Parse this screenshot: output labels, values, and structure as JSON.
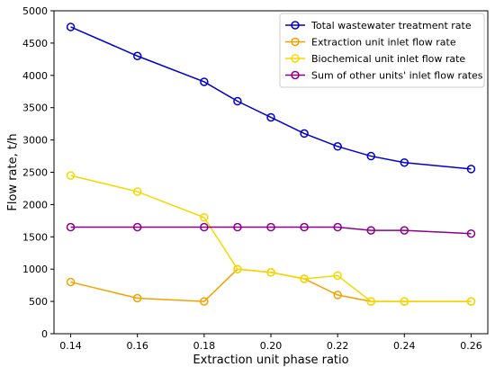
{
  "chart_data": {
    "type": "line",
    "title": "",
    "xlabel": "Extraction unit phase ratio",
    "ylabel": "Flow rate, t/h",
    "xlim": [
      0.135,
      0.265
    ],
    "ylim": [
      0,
      5000
    ],
    "xticks": [
      "0.14",
      "0.16",
      "0.18",
      "0.20",
      "0.22",
      "0.24",
      "0.26"
    ],
    "xtick_values": [
      0.14,
      0.16,
      0.18,
      0.2,
      0.22,
      0.24,
      0.26
    ],
    "yticks": [
      "0",
      "500",
      "1000",
      "1500",
      "2000",
      "2500",
      "3000",
      "3500",
      "4000",
      "4500",
      "5000"
    ],
    "ytick_values": [
      0,
      500,
      1000,
      1500,
      2000,
      2500,
      3000,
      3500,
      4000,
      4500,
      5000
    ],
    "grid": false,
    "legend_position": "top-right",
    "x": [
      0.14,
      0.16,
      0.18,
      0.19,
      0.2,
      0.21,
      0.22,
      0.23,
      0.24,
      0.26
    ],
    "series": [
      {
        "name": "Total wastewater treatment rate",
        "color": "#0000cc",
        "values": [
          4750,
          4300,
          3900,
          3600,
          3350,
          3100,
          2900,
          2750,
          2650,
          2550
        ]
      },
      {
        "name": "Extraction unit inlet flow rate",
        "color": "#f5a000",
        "values": [
          800,
          550,
          500,
          1000,
          950,
          850,
          600,
          500,
          500,
          500
        ]
      },
      {
        "name": "Biochemical unit inlet flow rate",
        "color": "#f5d800",
        "values": [
          2450,
          2200,
          1800,
          1000,
          950,
          850,
          900,
          500,
          500,
          500
        ]
      },
      {
        "name": "Sum of other units' inlet flow rates",
        "color": "#8b008b",
        "values": [
          1650,
          1650,
          1650,
          1650,
          1650,
          1650,
          1650,
          1600,
          1600,
          1550
        ]
      }
    ]
  }
}
